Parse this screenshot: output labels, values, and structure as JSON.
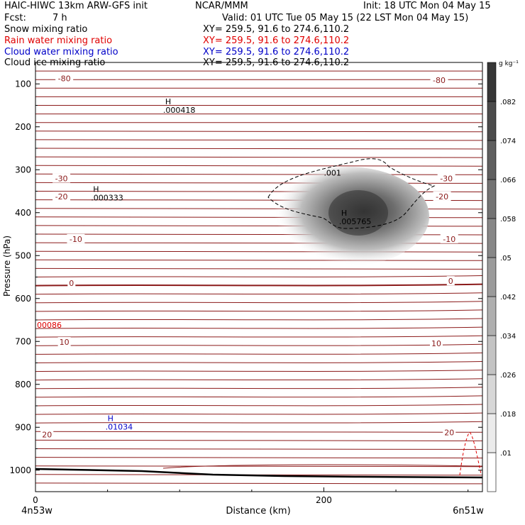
{
  "header": {
    "title_left": "HAIC-HIWC 13km ARW-GFS init",
    "institution": "NCAR/MMM",
    "init": "Init: 18 UTC Mon 04 May 15",
    "fcst_label": "Fcst:",
    "fcst_value": "7 h",
    "valid": "Valid: 01 UTC Tue 05 May 15 (22 LST Mon 04 May 15)"
  },
  "fields": [
    {
      "name": "Snow mixing ratio",
      "xy": "XY= 259.5, 91.6 to 274.6,110.2",
      "color": "#000000"
    },
    {
      "name": "Rain water mixing ratio",
      "xy": "XY= 259.5, 91.6 to 274.6,110.2",
      "color": "#e00000"
    },
    {
      "name": "Cloud water mixing ratio",
      "xy": "XY= 259.5, 91.6 to 274.6,110.2",
      "color": "#0000c8"
    },
    {
      "name": "Cloud ice mixing ratio",
      "xy": "XY= 259.5, 91.6 to 274.6,110.2",
      "color": "#000000"
    }
  ],
  "chart_data": {
    "type": "contour-cross-section",
    "xlabel": "Distance (km)",
    "ylabel": "Pressure (hPa)",
    "x_ticks": [
      0,
      200
    ],
    "y_ticks": [
      100,
      200,
      300,
      400,
      500,
      600,
      700,
      800,
      900,
      1000
    ],
    "xlim": [
      0,
      310
    ],
    "ylim": [
      1050,
      50
    ],
    "endpoint_left": "4n53w",
    "endpoint_right": "6n51w",
    "colorbar": {
      "unit": "g kg⁻¹",
      "levels": [
        ".01",
        ".018",
        ".026",
        ".034",
        ".042",
        ".05",
        ".058",
        ".066",
        ".074",
        ".082"
      ]
    },
    "temperature_labels": [
      {
        "text": "-80",
        "x": 20,
        "p": 89
      },
      {
        "text": "-80",
        "x": 280,
        "p": 93
      },
      {
        "text": "-30",
        "x": 18,
        "p": 322
      },
      {
        "text": "-30",
        "x": 285,
        "p": 322
      },
      {
        "text": "-20",
        "x": 18,
        "p": 364
      },
      {
        "text": "-20",
        "x": 282,
        "p": 364
      },
      {
        "text": "-10",
        "x": 28,
        "p": 463
      },
      {
        "text": "-10",
        "x": 287,
        "p": 463
      },
      {
        "text": "0",
        "x": 25,
        "p": 566
      },
      {
        "text": "0",
        "x": 288,
        "p": 561
      },
      {
        "text": "10",
        "x": 20,
        "p": 703
      },
      {
        "text": "10",
        "x": 278,
        "p": 706
      },
      {
        "text": "20",
        "x": 8,
        "p": 919
      },
      {
        "text": "20",
        "x": 287,
        "p": 914
      }
    ],
    "maxima": [
      {
        "label": "H",
        "value": ".000418",
        "x": 90,
        "p": 151,
        "color": "#000000"
      },
      {
        "label": "H",
        "value": ".000333",
        "x": 40,
        "p": 355,
        "color": "#000000"
      },
      {
        "label": "H",
        "value": ".005765",
        "x": 212,
        "p": 410,
        "color": "#000000"
      },
      {
        "label": "H",
        "value": ".01034",
        "x": 50,
        "p": 889,
        "color": "#0000c8"
      }
    ],
    "other_labels": [
      {
        "text": ".001",
        "x": 200,
        "p": 314,
        "color": "#000000"
      },
      {
        "text": "00086",
        "x": 1,
        "p": 668,
        "color": "#e00000"
      }
    ]
  }
}
